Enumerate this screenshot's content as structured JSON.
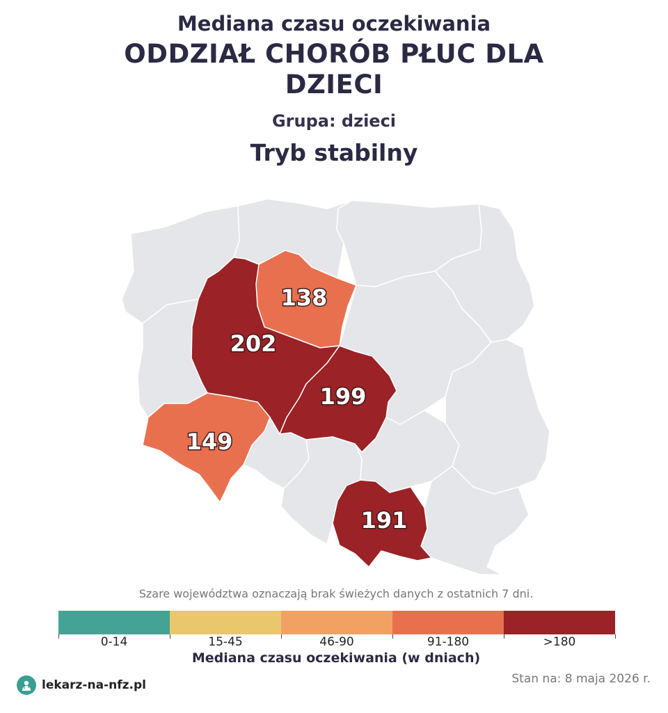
{
  "title": {
    "line1": "Mediana czasu oczekiwania",
    "line2": "ODDZIAŁ CHORÓB PŁUC DLA",
    "line3": "DZIECI",
    "group": "Grupa: dzieci",
    "mode": "Tryb stabilny"
  },
  "map": {
    "regions": [
      {
        "name": "kujawsko-pomorskie",
        "value": "138",
        "color": "#e8704f"
      },
      {
        "name": "wielkopolskie",
        "value": "202",
        "color": "#9b2226"
      },
      {
        "name": "łódzkie",
        "value": "199",
        "color": "#9b2226"
      },
      {
        "name": "dolnośląskie",
        "value": "149",
        "color": "#e8704f"
      },
      {
        "name": "małopolskie",
        "value": "191",
        "color": "#9b2226"
      }
    ],
    "no_data_color": "#e5e6e9"
  },
  "note": "Szare województwa oznaczają brak świeżych danych z ostatnich 7 dni.",
  "legend": {
    "items": [
      {
        "label": "0-14",
        "color": "#44a394"
      },
      {
        "label": "15-45",
        "color": "#eac76b"
      },
      {
        "label": "46-90",
        "color": "#f2a163"
      },
      {
        "label": "91-180",
        "color": "#e8704f"
      },
      {
        "label": ">180",
        "color": "#9b2226"
      }
    ],
    "title": "Mediana czasu oczekiwania (w dniach)"
  },
  "brand": "lekarz-na-nfz.pl",
  "stamp": "Stan na: 8 maja 2026 r."
}
